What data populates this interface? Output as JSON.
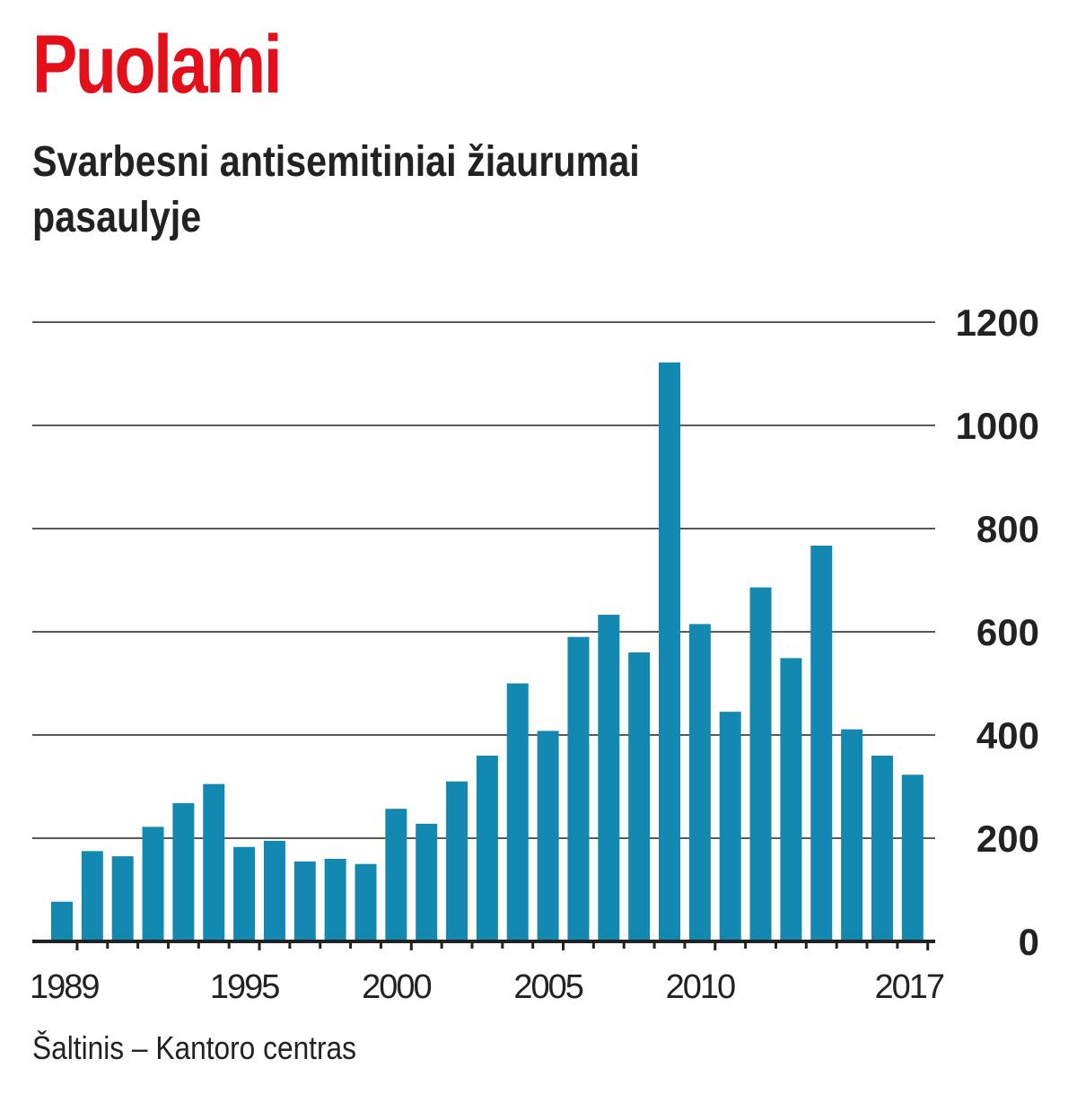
{
  "title": "Puolami",
  "subtitle": "Svarbesni antisemitiniai žiaurumai pasaulyje",
  "source": "Šaltinis – Kantoro centras",
  "colors": {
    "title": "#e3101b",
    "bar": "#1388b0",
    "text": "#222222",
    "grid": "#222222"
  },
  "chart_data": {
    "type": "bar",
    "categories": [
      "1989",
      "1990",
      "1991",
      "1992",
      "1993",
      "1994",
      "1995",
      "1996",
      "1997",
      "1998",
      "1999",
      "2000",
      "2001",
      "2002",
      "2003",
      "2004",
      "2005",
      "2006",
      "2007",
      "2008",
      "2009",
      "2010",
      "2011",
      "2012",
      "2013",
      "2014",
      "2015",
      "2016",
      "2017"
    ],
    "values": [
      77,
      175,
      165,
      222,
      268,
      305,
      183,
      195,
      155,
      160,
      150,
      257,
      228,
      310,
      360,
      500,
      408,
      590,
      633,
      560,
      1122,
      615,
      445,
      686,
      549,
      767,
      411,
      360,
      323
    ],
    "x_tick_labels": [
      "1989",
      "1995",
      "2000",
      "2005",
      "2010",
      "2017"
    ],
    "y_ticks": [
      "0",
      "200",
      "400",
      "600",
      "800",
      "1000",
      "1200"
    ],
    "ylim": [
      0,
      1200
    ],
    "grid": true,
    "yaxis_side": "right",
    "xlabel": "",
    "ylabel": ""
  }
}
